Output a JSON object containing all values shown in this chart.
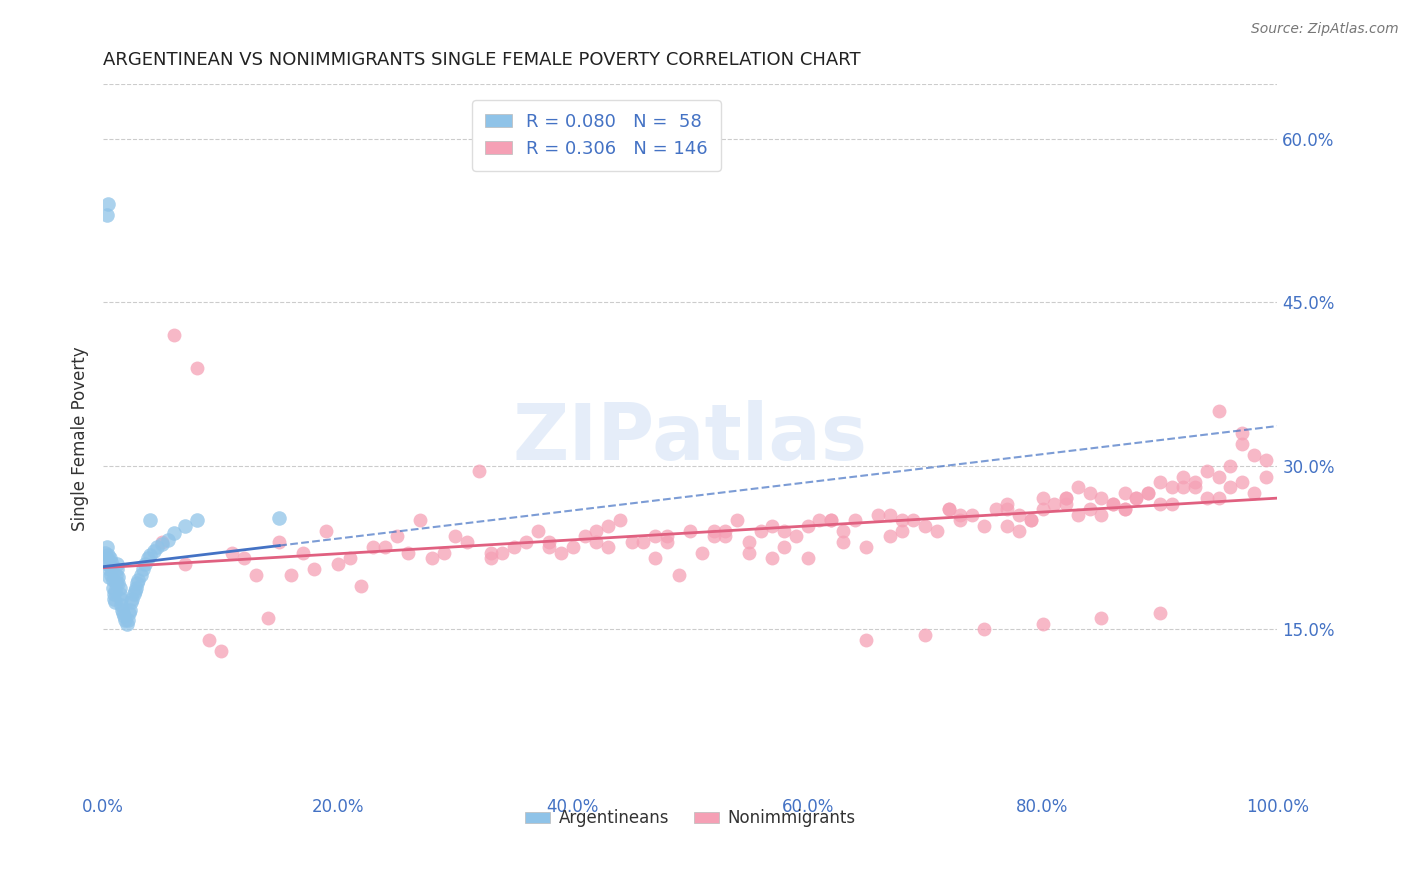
{
  "title": "ARGENTINEAN VS NONIMMIGRANTS SINGLE FEMALE POVERTY CORRELATION CHART",
  "source": "Source: ZipAtlas.com",
  "ylabel": "Single Female Poverty",
  "watermark": "ZIPatlas",
  "legend_argentinean": "Argentineans",
  "legend_nonimmigrant": "Nonimmigrants",
  "R_arg": 0.08,
  "N_arg": 58,
  "R_non": 0.306,
  "N_non": 146,
  "xlim": [
    0,
    1.0
  ],
  "ylim": [
    0,
    0.65
  ],
  "yticks": [
    0.15,
    0.3,
    0.45,
    0.6
  ],
  "xticks": [
    0.0,
    0.2,
    0.4,
    0.6,
    0.8,
    1.0
  ],
  "color_arg": "#8FC3E8",
  "color_non": "#F5A0B5",
  "trendline_arg_color": "#4472C4",
  "trendline_non_color": "#E06080",
  "tick_label_color": "#4472C4",
  "background_color": "#FFFFFF",
  "arg_x": [
    0.002,
    0.003,
    0.003,
    0.004,
    0.004,
    0.005,
    0.005,
    0.006,
    0.006,
    0.007,
    0.007,
    0.008,
    0.008,
    0.009,
    0.009,
    0.01,
    0.01,
    0.011,
    0.011,
    0.012,
    0.012,
    0.013,
    0.013,
    0.014,
    0.014,
    0.015,
    0.015,
    0.016,
    0.017,
    0.018,
    0.019,
    0.02,
    0.021,
    0.022,
    0.023,
    0.024,
    0.025,
    0.026,
    0.027,
    0.028,
    0.029,
    0.03,
    0.032,
    0.034,
    0.036,
    0.038,
    0.04,
    0.043,
    0.046,
    0.05,
    0.055,
    0.06,
    0.07,
    0.08,
    0.15,
    0.003,
    0.004,
    0.04
  ],
  "arg_y": [
    0.22,
    0.215,
    0.225,
    0.218,
    0.21,
    0.205,
    0.198,
    0.208,
    0.215,
    0.212,
    0.2,
    0.195,
    0.188,
    0.182,
    0.178,
    0.175,
    0.185,
    0.192,
    0.2,
    0.21,
    0.205,
    0.198,
    0.192,
    0.188,
    0.182,
    0.178,
    0.172,
    0.168,
    0.165,
    0.162,
    0.158,
    0.155,
    0.158,
    0.165,
    0.168,
    0.175,
    0.178,
    0.182,
    0.185,
    0.188,
    0.192,
    0.195,
    0.2,
    0.205,
    0.21,
    0.215,
    0.218,
    0.222,
    0.225,
    0.228,
    0.232,
    0.238,
    0.245,
    0.25,
    0.252,
    0.53,
    0.54,
    0.25
  ],
  "non_x": [
    0.05,
    0.07,
    0.09,
    0.11,
    0.13,
    0.15,
    0.17,
    0.19,
    0.21,
    0.23,
    0.25,
    0.27,
    0.29,
    0.31,
    0.33,
    0.35,
    0.37,
    0.39,
    0.41,
    0.43,
    0.45,
    0.47,
    0.49,
    0.51,
    0.53,
    0.55,
    0.57,
    0.59,
    0.61,
    0.63,
    0.65,
    0.67,
    0.69,
    0.71,
    0.73,
    0.75,
    0.77,
    0.79,
    0.81,
    0.83,
    0.85,
    0.87,
    0.89,
    0.91,
    0.93,
    0.95,
    0.97,
    0.99,
    0.12,
    0.18,
    0.24,
    0.3,
    0.36,
    0.42,
    0.48,
    0.54,
    0.6,
    0.66,
    0.72,
    0.78,
    0.84,
    0.9,
    0.96,
    0.14,
    0.22,
    0.32,
    0.44,
    0.56,
    0.68,
    0.8,
    0.92,
    0.16,
    0.28,
    0.4,
    0.52,
    0.64,
    0.76,
    0.88,
    0.1,
    0.2,
    0.34,
    0.46,
    0.58,
    0.7,
    0.82,
    0.94,
    0.26,
    0.38,
    0.5,
    0.62,
    0.74,
    0.86,
    0.98,
    0.08,
    0.06,
    0.95,
    0.97,
    0.98,
    0.99,
    0.97,
    0.96,
    0.95,
    0.94,
    0.93,
    0.92,
    0.91,
    0.9,
    0.89,
    0.88,
    0.87,
    0.86,
    0.85,
    0.84,
    0.83,
    0.82,
    0.8,
    0.79,
    0.78,
    0.77,
    0.55,
    0.6,
    0.65,
    0.7,
    0.75,
    0.8,
    0.85,
    0.9,
    0.43,
    0.48,
    0.53,
    0.58,
    0.63,
    0.68,
    0.73,
    0.33,
    0.38,
    0.42,
    0.47,
    0.52,
    0.57,
    0.62,
    0.67,
    0.72,
    0.77,
    0.82,
    0.87
  ],
  "non_y": [
    0.23,
    0.21,
    0.14,
    0.22,
    0.2,
    0.23,
    0.22,
    0.24,
    0.215,
    0.225,
    0.235,
    0.25,
    0.22,
    0.23,
    0.215,
    0.225,
    0.24,
    0.22,
    0.235,
    0.245,
    0.23,
    0.215,
    0.2,
    0.22,
    0.24,
    0.23,
    0.215,
    0.235,
    0.25,
    0.24,
    0.225,
    0.235,
    0.25,
    0.24,
    0.255,
    0.245,
    0.26,
    0.25,
    0.265,
    0.255,
    0.27,
    0.26,
    0.275,
    0.265,
    0.28,
    0.27,
    0.285,
    0.29,
    0.215,
    0.205,
    0.225,
    0.235,
    0.23,
    0.24,
    0.235,
    0.25,
    0.245,
    0.255,
    0.26,
    0.255,
    0.275,
    0.265,
    0.28,
    0.16,
    0.19,
    0.295,
    0.25,
    0.24,
    0.25,
    0.27,
    0.28,
    0.2,
    0.215,
    0.225,
    0.235,
    0.25,
    0.26,
    0.27,
    0.13,
    0.21,
    0.22,
    0.23,
    0.24,
    0.245,
    0.265,
    0.27,
    0.22,
    0.23,
    0.24,
    0.25,
    0.255,
    0.265,
    0.275,
    0.39,
    0.42,
    0.35,
    0.33,
    0.31,
    0.305,
    0.32,
    0.3,
    0.29,
    0.295,
    0.285,
    0.29,
    0.28,
    0.285,
    0.275,
    0.27,
    0.26,
    0.265,
    0.255,
    0.26,
    0.28,
    0.27,
    0.26,
    0.25,
    0.24,
    0.245,
    0.22,
    0.215,
    0.14,
    0.145,
    0.15,
    0.155,
    0.16,
    0.165,
    0.225,
    0.23,
    0.235,
    0.225,
    0.23,
    0.24,
    0.25,
    0.22,
    0.225,
    0.23,
    0.235,
    0.24,
    0.245,
    0.25,
    0.255,
    0.26,
    0.265,
    0.27,
    0.275
  ]
}
